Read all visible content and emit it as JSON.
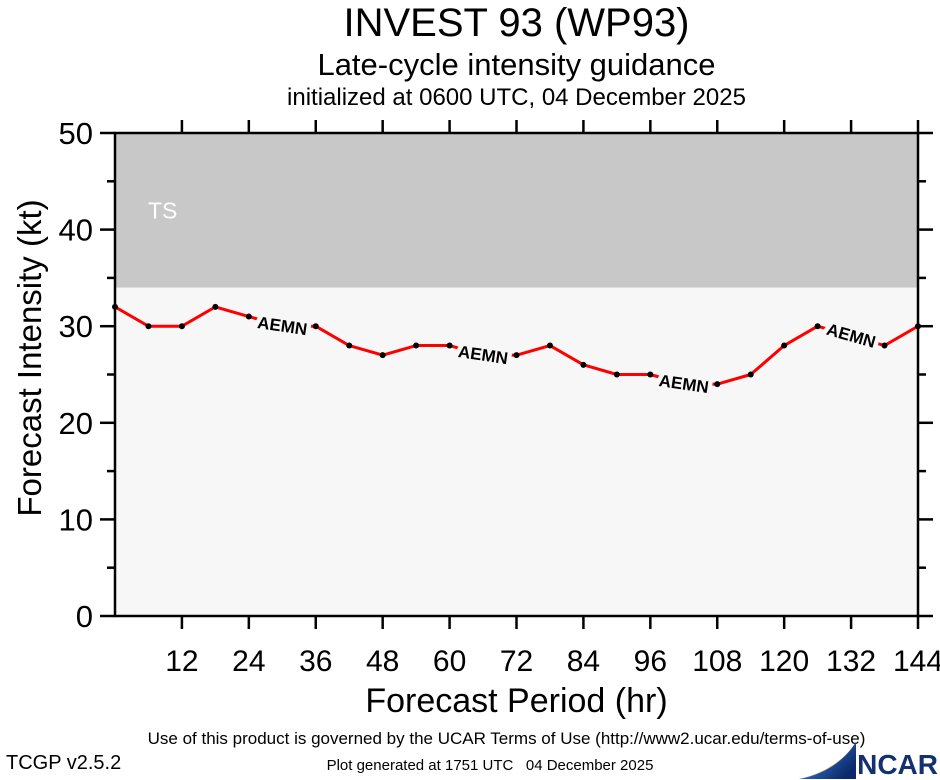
{
  "titles": {
    "main": "INVEST 93 (WP93)",
    "subtitle": "Late-cycle intensity guidance",
    "init_line": "initialized at 0600 UTC, 04 December 2025"
  },
  "chart_data": {
    "type": "line",
    "title": "INVEST 93 (WP93)",
    "subtitle": "Late-cycle intensity guidance",
    "init_line": "initialized at 0600 UTC, 04 December 2025",
    "xlabel": "Forecast Period (hr)",
    "ylabel": "Forecast Intensity (kt)",
    "xlim": [
      0,
      144
    ],
    "ylim": [
      0,
      50
    ],
    "xticks": [
      12,
      24,
      36,
      48,
      60,
      72,
      84,
      96,
      108,
      120,
      132,
      144
    ],
    "yticks_major": [
      0,
      10,
      20,
      30,
      40,
      50
    ],
    "yticks_minor": [
      5,
      15,
      25,
      35,
      45
    ],
    "grid": false,
    "legend_position": "inline-labels",
    "plot_bg": "#f7f7f7",
    "frame_color": "#000000",
    "threshold_bands": [
      {
        "label": "TS",
        "from_kt": 34,
        "to_kt": 50,
        "color": "#c8c8c8",
        "label_color": "#ffffff"
      }
    ],
    "series": [
      {
        "name": "AEMN",
        "color": "#ff0000",
        "marker": "dot",
        "marker_color": "#000000",
        "x": [
          0,
          6,
          12,
          18,
          24,
          30,
          36,
          42,
          48,
          54,
          60,
          66,
          72,
          78,
          84,
          90,
          96,
          102,
          108,
          114,
          120,
          126,
          132,
          138,
          144
        ],
        "values": [
          32,
          30,
          30,
          32,
          31,
          30,
          30,
          28,
          27,
          28,
          28,
          27,
          27,
          28,
          26,
          25,
          25,
          24,
          24,
          25,
          28,
          30,
          29,
          28,
          30
        ],
        "inline_label_hours": [
          30,
          66,
          102,
          132
        ]
      }
    ]
  },
  "footer": {
    "terms": "Use of this product is governed by the UCAR Terms of Use (http://www2.ucar.edu/terms-of-use)",
    "version": "TCGP v2.5.2",
    "generated": "Plot generated at 1751 UTC   04 December 2025",
    "logo_text": "NCAR"
  }
}
